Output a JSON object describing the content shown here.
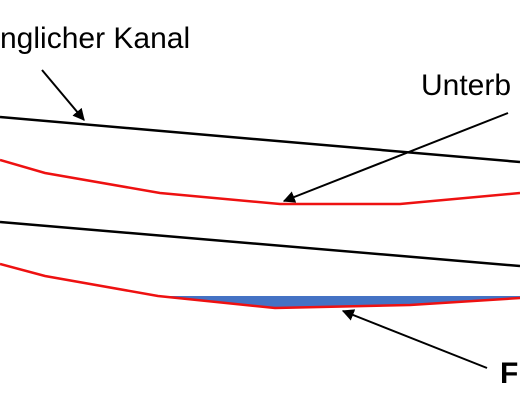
{
  "labels": {
    "original_channel": "nglicher Kanal",
    "undercut": "Unterb",
    "bottom_right": "F"
  },
  "colors": {
    "background": "#ffffff",
    "channel_line": "#000000",
    "cut_profile": "#ee1111",
    "water_fill": "#4472c4",
    "arrow": "#000000",
    "text": "#000000"
  }
}
